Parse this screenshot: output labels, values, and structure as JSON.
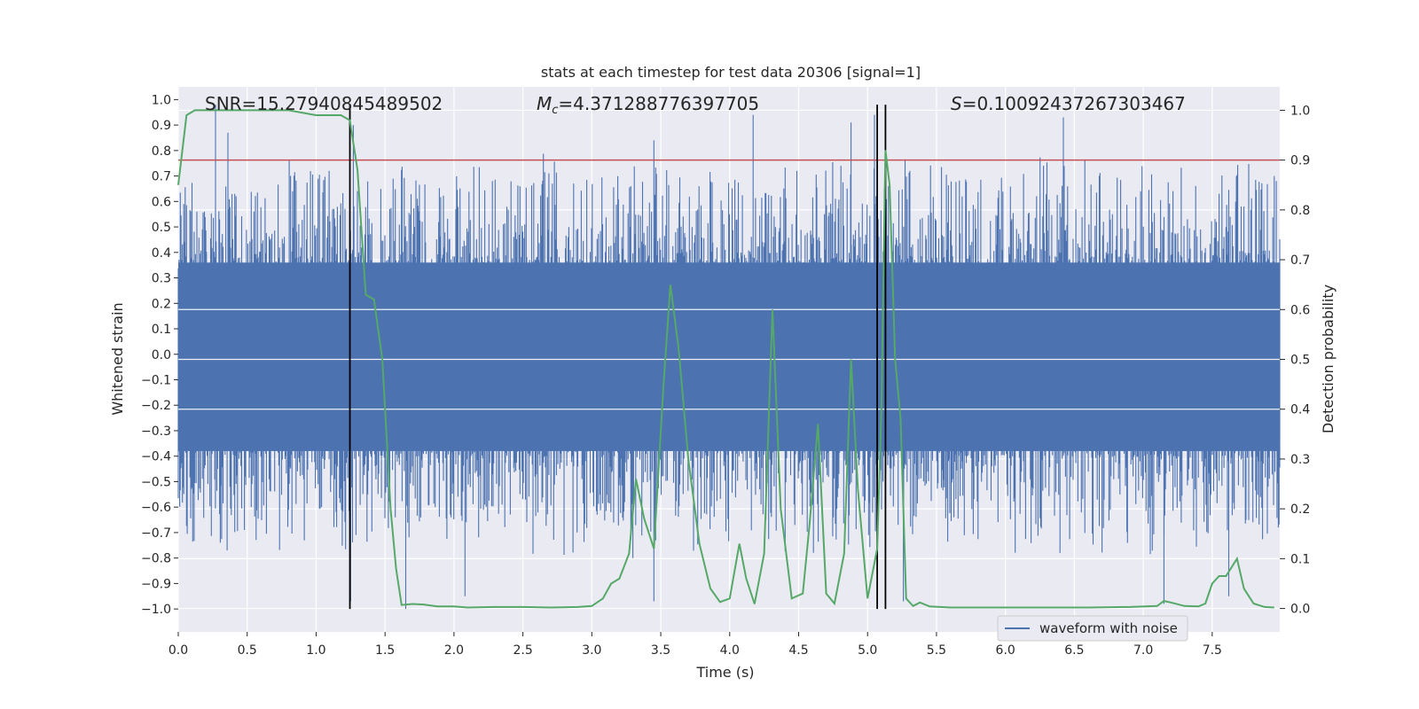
{
  "chart_data": {
    "type": "line",
    "title": "stats at each timestep for test data 20306 [signal=1]",
    "xlabel": "Time (s)",
    "ylabel_left": "Whitened strain",
    "ylabel_right": "Detection probability",
    "xlim": [
      0.0,
      7.99
    ],
    "ylim_left": [
      -1.09,
      1.05
    ],
    "ylim_right": [
      -0.047,
      1.047
    ],
    "x_ticks": [
      "0.0",
      "0.5",
      "1.0",
      "1.5",
      "2.0",
      "2.5",
      "3.0",
      "3.5",
      "4.0",
      "4.5",
      "5.0",
      "5.5",
      "6.0",
      "6.5",
      "7.0",
      "7.5"
    ],
    "y_left_ticks": [
      "1.0",
      "0.9",
      "0.8",
      "0.7",
      "0.6",
      "0.5",
      "0.4",
      "0.3",
      "0.2",
      "0.1",
      "0.0",
      "-0.1",
      "-0.2",
      "-0.3",
      "-0.4",
      "-0.5",
      "-0.6",
      "-0.7",
      "-0.8",
      "-0.9",
      "-1.0"
    ],
    "y_right_ticks": [
      "0.0",
      "0.1",
      "0.2",
      "0.3",
      "0.4",
      "0.5",
      "0.6",
      "0.7",
      "0.8",
      "0.9",
      "1.0"
    ],
    "grid": true,
    "legend": {
      "position": "bottom-right",
      "entries": [
        "waveform with noise"
      ]
    },
    "annotations": {
      "snr": "SNR=15.27940845489502",
      "mc_symbol": "M",
      "mc_sub": "c",
      "mc_value": "=4.371288776397705",
      "s_symbol": "S",
      "s_value": "=0.10092437267303467"
    },
    "threshold": {
      "value": 0.9,
      "axis": "right",
      "color": "#c44e52"
    },
    "vertical_markers": [
      {
        "x": 1.245,
        "y_range": [
          -1.0,
          0.98
        ]
      },
      {
        "x": 5.07,
        "y_range": [
          -1.0,
          0.98
        ]
      },
      {
        "x": 5.13,
        "y_range": [
          -1.0,
          0.98
        ]
      }
    ],
    "waveform_envelope": {
      "name": "waveform with noise",
      "color": "#4c72b0",
      "typical_upper": 0.38,
      "typical_lower": -0.4,
      "notable_peaks": [
        {
          "x": 0.27,
          "y": 0.98
        },
        {
          "x": 0.36,
          "y": 0.87
        },
        {
          "x": 1.27,
          "y": 0.9
        },
        {
          "x": 1.25,
          "y": -0.97
        },
        {
          "x": 1.65,
          "y": -1.0
        },
        {
          "x": 2.08,
          "y": -0.95
        },
        {
          "x": 3.45,
          "y": 0.84
        },
        {
          "x": 3.45,
          "y": -0.97
        },
        {
          "x": 4.17,
          "y": 0.94
        },
        {
          "x": 4.88,
          "y": 0.91
        },
        {
          "x": 5.05,
          "y": 0.94
        },
        {
          "x": 5.26,
          "y": -0.97
        },
        {
          "x": 6.42,
          "y": 0.93
        },
        {
          "x": 7.15,
          "y": -0.98
        },
        {
          "x": 7.62,
          "y": -0.95
        },
        {
          "x": 7.95,
          "y": 0.7
        }
      ]
    },
    "detection_probability": {
      "name": "detection probability",
      "color": "#55a868",
      "x": [
        0.0,
        0.06,
        0.12,
        0.2,
        0.4,
        0.6,
        0.8,
        1.0,
        1.1,
        1.18,
        1.245,
        1.3,
        1.36,
        1.42,
        1.48,
        1.54,
        1.58,
        1.62,
        1.7,
        1.78,
        1.88,
        2.0,
        2.1,
        2.3,
        2.5,
        2.7,
        2.9,
        3.0,
        3.08,
        3.14,
        3.2,
        3.27,
        3.32,
        3.38,
        3.45,
        3.52,
        3.57,
        3.63,
        3.7,
        3.78,
        3.86,
        3.93,
        4.0,
        4.07,
        4.12,
        4.18,
        4.25,
        4.31,
        4.37,
        4.45,
        4.53,
        4.58,
        4.64,
        4.7,
        4.76,
        4.83,
        4.88,
        4.93,
        5.0,
        5.07,
        5.1,
        5.13,
        5.16,
        5.2,
        5.24,
        5.28,
        5.33,
        5.38,
        5.45,
        5.6,
        5.8,
        6.0,
        6.3,
        6.6,
        6.9,
        7.1,
        7.15,
        7.2,
        7.3,
        7.4,
        7.45,
        7.5,
        7.55,
        7.6,
        7.68,
        7.73,
        7.8,
        7.88,
        7.95
      ],
      "y": [
        0.85,
        0.99,
        1.0,
        1.0,
        1.0,
        1.0,
        1.0,
        0.99,
        0.99,
        0.99,
        0.98,
        0.88,
        0.63,
        0.62,
        0.5,
        0.2,
        0.08,
        0.007,
        0.009,
        0.008,
        0.004,
        0.004,
        0.002,
        0.003,
        0.003,
        0.002,
        0.003,
        0.005,
        0.02,
        0.05,
        0.06,
        0.11,
        0.26,
        0.18,
        0.12,
        0.45,
        0.65,
        0.52,
        0.3,
        0.13,
        0.04,
        0.013,
        0.02,
        0.13,
        0.06,
        0.009,
        0.11,
        0.6,
        0.2,
        0.02,
        0.03,
        0.17,
        0.37,
        0.03,
        0.01,
        0.11,
        0.5,
        0.24,
        0.02,
        0.12,
        0.4,
        0.92,
        0.85,
        0.5,
        0.38,
        0.02,
        0.005,
        0.012,
        0.004,
        0.002,
        0.002,
        0.002,
        0.002,
        0.002,
        0.003,
        0.005,
        0.015,
        0.012,
        0.005,
        0.004,
        0.01,
        0.05,
        0.065,
        0.065,
        0.1,
        0.04,
        0.01,
        0.003,
        0.002
      ]
    },
    "colors": {
      "plot_bg": "#eaeaf2",
      "grid": "#ffffff",
      "text": "#262626",
      "vline": "#000000"
    }
  }
}
